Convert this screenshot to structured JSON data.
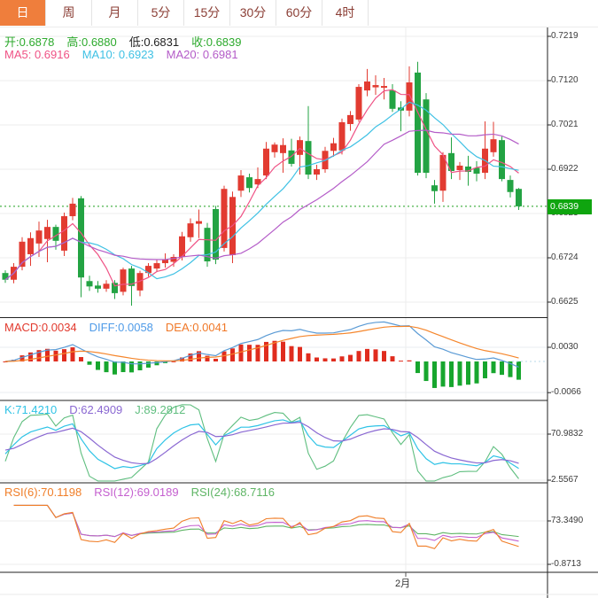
{
  "toolbar": {
    "tabs": [
      {
        "label": "日",
        "active": true
      },
      {
        "label": "周",
        "active": false
      },
      {
        "label": "月",
        "active": false
      },
      {
        "label": "5分",
        "active": false
      },
      {
        "label": "15分",
        "active": false
      },
      {
        "label": "30分",
        "active": false
      },
      {
        "label": "60分",
        "active": false
      },
      {
        "label": "4时",
        "active": false
      }
    ]
  },
  "price_header": {
    "ohlc": [
      {
        "text": "开:0.6878",
        "color": "#2daa2d"
      },
      {
        "text": "高:0.6880",
        "color": "#2daa2d"
      },
      {
        "text": "低:0.6831",
        "color": "#222222"
      },
      {
        "text": "收:0.6839",
        "color": "#2daa2d"
      }
    ],
    "ma": [
      {
        "text": "MA5: 0.6916",
        "color": "#ef5285"
      },
      {
        "text": "MA10: 0.6923",
        "color": "#3fc1e4"
      },
      {
        "text": "MA20: 0.6981",
        "color": "#b45cc8"
      }
    ]
  },
  "price_panel": {
    "axis_labels": [
      "0.7219",
      "0.7120",
      "0.7021",
      "0.6922",
      "0.6823",
      "0.6724",
      "0.6625"
    ],
    "badge": "0.6839"
  },
  "macd_panel": {
    "labels": [
      {
        "text": "MACD:0.0034",
        "color": "#e23a2e"
      },
      {
        "text": "DIFF:0.0058",
        "color": "#4f9be8"
      },
      {
        "text": "DEA:0.0041",
        "color": "#f07828"
      }
    ],
    "axis_labels": [
      "0.0030",
      "-0.0066"
    ]
  },
  "kdj_panel": {
    "labels": [
      {
        "text": "K:71.4210",
        "color": "#2fc3e6"
      },
      {
        "text": "D:62.4909",
        "color": "#8a68d2"
      },
      {
        "text": "J:89.2812",
        "color": "#5fbe7f"
      }
    ],
    "axis_labels": [
      "70.9832",
      "2.5567"
    ]
  },
  "rsi_panel": {
    "labels": [
      {
        "text": "RSI(6):70.1198",
        "color": "#f07e28"
      },
      {
        "text": "RSI(12):69.0189",
        "color": "#c45fcf"
      },
      {
        "text": "RSI(24):68.7116",
        "color": "#5fb565"
      }
    ],
    "axis_labels": [
      "73.3490",
      "-0.8713"
    ]
  },
  "x_axis": {
    "label": "2月"
  },
  "colors": {
    "up": "#e23b31",
    "down": "#23a343",
    "ma5": "#ef5285",
    "ma10": "#3fc1e4",
    "ma20": "#b45cc8",
    "diff_line": "#5b9bd5",
    "dea_line": "#f5862c",
    "k_line": "#2fc3e6",
    "d_line": "#8a68d2",
    "j_line": "#5fbe7f",
    "rsi6": "#f07e28",
    "rsi12": "#c45fcf",
    "rsi24": "#5fb565",
    "badge": "#0fa50f",
    "dotted_price": "#1fa01f"
  },
  "chart_data": {
    "type": "candlestick",
    "panels": [
      "price",
      "MACD",
      "KDJ",
      "RSI"
    ],
    "timeframe": "日",
    "price_axis_ticks": [
      0.7219,
      0.712,
      0.7021,
      0.6922,
      0.6823,
      0.6724,
      0.6625
    ],
    "last": {
      "open": 0.6878,
      "high": 0.688,
      "low": 0.6831,
      "close": 0.6839
    },
    "ma_periods": [
      5,
      10,
      20
    ],
    "macd_params": [
      12,
      26,
      9
    ],
    "kdj_params": [
      9,
      3,
      3
    ],
    "rsi_periods": [
      6,
      12,
      24
    ],
    "x_gridline_label": "2月",
    "candles": [
      [
        0.669,
        0.6696,
        0.6668,
        0.6675
      ],
      [
        0.6675,
        0.6712,
        0.6667,
        0.6704
      ],
      [
        0.6704,
        0.677,
        0.6696,
        0.676
      ],
      [
        0.6732,
        0.6781,
        0.6706,
        0.6768
      ],
      [
        0.6756,
        0.6805,
        0.6726,
        0.6785
      ],
      [
        0.6766,
        0.6809,
        0.6714,
        0.6793
      ],
      [
        0.6793,
        0.6798,
        0.6742,
        0.6762
      ],
      [
        0.674,
        0.6825,
        0.6728,
        0.6817
      ],
      [
        0.6817,
        0.6858,
        0.6808,
        0.6845
      ],
      [
        0.6857,
        0.6862,
        0.6636,
        0.668
      ],
      [
        0.6672,
        0.6684,
        0.665,
        0.666
      ],
      [
        0.6662,
        0.6672,
        0.6646,
        0.6655
      ],
      [
        0.6655,
        0.6674,
        0.6648,
        0.6666
      ],
      [
        0.6668,
        0.6674,
        0.6632,
        0.6645
      ],
      [
        0.6648,
        0.6702,
        0.664,
        0.6698
      ],
      [
        0.67,
        0.6706,
        0.6617,
        0.6661
      ],
      [
        0.6651,
        0.6695,
        0.6638,
        0.669
      ],
      [
        0.669,
        0.6712,
        0.6682,
        0.6706
      ],
      [
        0.67,
        0.672,
        0.6692,
        0.6712
      ],
      [
        0.6712,
        0.6734,
        0.6702,
        0.672
      ],
      [
        0.6715,
        0.6732,
        0.6704,
        0.6726
      ],
      [
        0.6726,
        0.6782,
        0.6718,
        0.6772
      ],
      [
        0.677,
        0.6812,
        0.676,
        0.6801
      ],
      [
        0.68,
        0.6832,
        0.6768,
        0.6806
      ],
      [
        0.6791,
        0.6802,
        0.6704,
        0.6716
      ],
      [
        0.6833,
        0.684,
        0.671,
        0.672
      ],
      [
        0.6746,
        0.6885,
        0.6738,
        0.6878
      ],
      [
        0.673,
        0.6872,
        0.6712,
        0.686
      ],
      [
        0.6874,
        0.692,
        0.686,
        0.6908
      ],
      [
        0.6904,
        0.6912,
        0.687,
        0.688
      ],
      [
        0.6888,
        0.6926,
        0.688,
        0.69
      ],
      [
        0.6908,
        0.6983,
        0.69,
        0.6968
      ],
      [
        0.696,
        0.6982,
        0.6948,
        0.6977
      ],
      [
        0.6958,
        0.6991,
        0.6914,
        0.6976
      ],
      [
        0.6964,
        0.699,
        0.6928,
        0.6934
      ],
      [
        0.6954,
        0.6995,
        0.691,
        0.6987
      ],
      [
        0.6985,
        0.7063,
        0.69,
        0.691
      ],
      [
        0.691,
        0.6932,
        0.6898,
        0.6922
      ],
      [
        0.6922,
        0.6972,
        0.6914,
        0.6963
      ],
      [
        0.6963,
        0.6992,
        0.695,
        0.698
      ],
      [
        0.6964,
        0.7035,
        0.6955,
        0.7027
      ],
      [
        0.7023,
        0.7052,
        0.7008,
        0.7043
      ],
      [
        0.7033,
        0.7112,
        0.7028,
        0.7106
      ],
      [
        0.7098,
        0.7146,
        0.7085,
        0.7118
      ],
      [
        0.7105,
        0.7132,
        0.7088,
        0.711
      ],
      [
        0.7104,
        0.7126,
        0.7078,
        0.7108
      ],
      [
        0.7098,
        0.7112,
        0.705,
        0.7057
      ],
      [
        0.706,
        0.7074,
        0.7007,
        0.7053
      ],
      [
        0.7053,
        0.7152,
        0.704,
        0.7116
      ],
      [
        0.7138,
        0.7162,
        0.6908,
        0.6914
      ],
      [
        0.7078,
        0.7092,
        0.6902,
        0.6914
      ],
      [
        0.6886,
        0.6898,
        0.6845,
        0.6873
      ],
      [
        0.6874,
        0.696,
        0.6849,
        0.6954
      ],
      [
        0.6958,
        0.6993,
        0.69,
        0.6918
      ],
      [
        0.692,
        0.6938,
        0.6898,
        0.693
      ],
      [
        0.6928,
        0.6952,
        0.6885,
        0.6916
      ],
      [
        0.6925,
        0.694,
        0.6895,
        0.6912
      ],
      [
        0.6914,
        0.7029,
        0.69,
        0.6968
      ],
      [
        0.696,
        0.7028,
        0.695,
        0.6989
      ],
      [
        0.6987,
        0.6995,
        0.6895,
        0.69
      ],
      [
        0.6898,
        0.6908,
        0.6859,
        0.6871
      ],
      [
        0.6878,
        0.688,
        0.6831,
        0.6839
      ]
    ]
  }
}
